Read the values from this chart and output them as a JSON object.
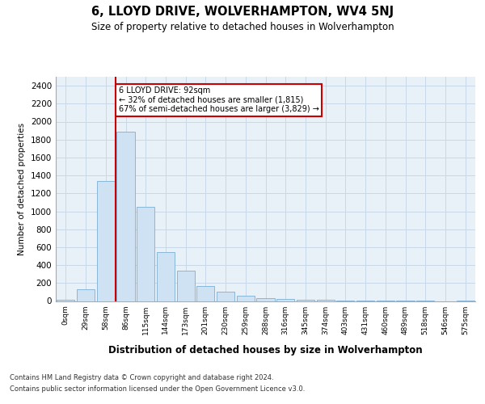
{
  "title": "6, LLOYD DRIVE, WOLVERHAMPTON, WV4 5NJ",
  "subtitle": "Size of property relative to detached houses in Wolverhampton",
  "xlabel": "Distribution of detached houses by size in Wolverhampton",
  "ylabel": "Number of detached properties",
  "footer_lines": [
    "Contains HM Land Registry data © Crown copyright and database right 2024.",
    "Contains public sector information licensed under the Open Government Licence v3.0."
  ],
  "bin_labels": [
    "0sqm",
    "29sqm",
    "58sqm",
    "86sqm",
    "115sqm",
    "144sqm",
    "173sqm",
    "201sqm",
    "230sqm",
    "259sqm",
    "288sqm",
    "316sqm",
    "345sqm",
    "374sqm",
    "403sqm",
    "431sqm",
    "460sqm",
    "489sqm",
    "518sqm",
    "546sqm",
    "575sqm"
  ],
  "bar_heights": [
    10,
    130,
    1340,
    1890,
    1050,
    545,
    340,
    170,
    105,
    55,
    30,
    20,
    15,
    12,
    8,
    5,
    4,
    3,
    2,
    0,
    2
  ],
  "bar_color": "#cfe2f3",
  "bar_edge_color": "#7bafd4",
  "grid_color": "#c8d8e8",
  "bg_color": "#e8f0f8",
  "property_label": "6 LLOYD DRIVE: 92sqm",
  "annotation_line1": "← 32% of detached houses are smaller (1,815)",
  "annotation_line2": "67% of semi-detached houses are larger (3,829) →",
  "vline_color": "#cc0000",
  "annotation_box_color": "#ffffff",
  "annotation_box_edge": "#cc0000",
  "ylim": [
    0,
    2500
  ],
  "yticks": [
    0,
    200,
    400,
    600,
    800,
    1000,
    1200,
    1400,
    1600,
    1800,
    2000,
    2200,
    2400
  ],
  "vline_x": 2.5
}
